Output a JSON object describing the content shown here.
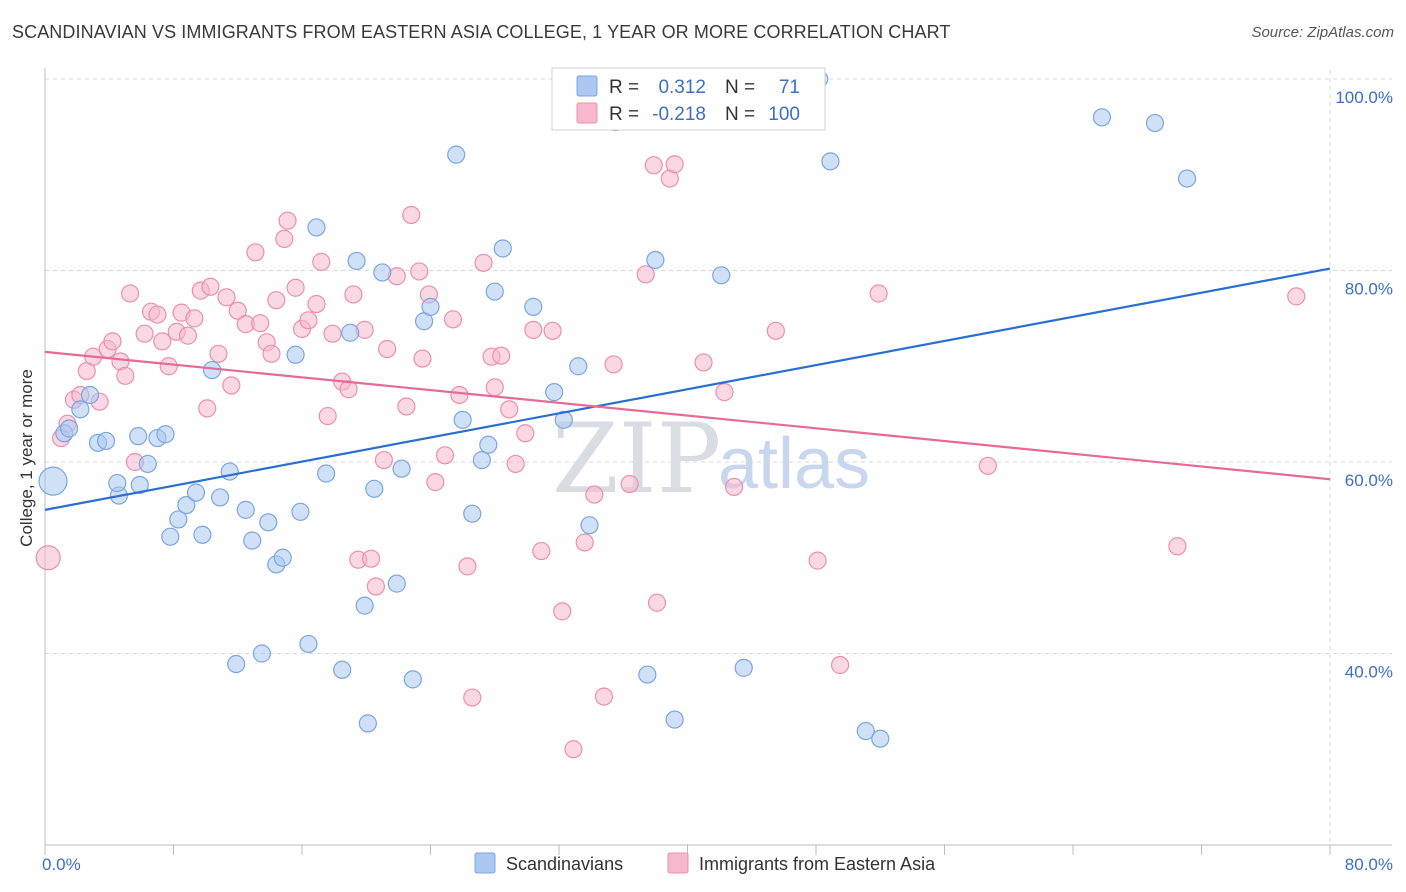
{
  "title": "SCANDINAVIAN VS IMMIGRANTS FROM EASTERN ASIA COLLEGE, 1 YEAR OR MORE CORRELATION CHART",
  "source": "Source: ZipAtlas.com",
  "watermark": {
    "zip": "ZIP",
    "atlas": "atlas"
  },
  "colors": {
    "blue_fill": "#aac8f0",
    "blue_stroke": "#7aa6e0",
    "blue_line": "#2a6fd0",
    "pink_fill": "#f5b8cc",
    "pink_stroke": "#ec8fae",
    "pink_line": "#e56a98",
    "axis_label": "#3d6fc4",
    "grid": "#d8d8d8"
  },
  "legend": {
    "row1": {
      "r_label": "R =",
      "r_value": "0.312",
      "n_label": "N =",
      "n_value": "71"
    },
    "row2": {
      "r_label": "R =",
      "r_value": "-0.218",
      "n_label": "N =",
      "n_value": "100"
    }
  },
  "bottom_legend": {
    "series1": "Scandinavians",
    "series2": "Immigrants from Eastern Asia"
  },
  "chart_data": {
    "type": "scatter",
    "title": "SCANDINAVIAN VS IMMIGRANTS FROM EASTERN ASIA COLLEGE, 1 YEAR OR MORE CORRELATION CHART",
    "xlabel": "",
    "ylabel": "College, 1 year or more",
    "xlim": [
      0,
      80
    ],
    "ylim": [
      20,
      100
    ],
    "x_tick_labels": [
      "0.0%",
      "80.0%"
    ],
    "y_ticks": [
      40,
      60,
      80,
      100
    ],
    "y_tick_labels": [
      "40.0%",
      "60.0%",
      "80.0%",
      "100.0%"
    ],
    "grid": true,
    "legend_position": "top-center",
    "series": [
      {
        "name": "Scandinavians",
        "r": 0.312,
        "n": 71,
        "trend": {
          "x": [
            0,
            80
          ],
          "y": [
            55.0,
            80.2
          ]
        },
        "points": [
          [
            0.5,
            58,
            3
          ],
          [
            1.2,
            63,
            1
          ],
          [
            1.5,
            63.5,
            1
          ],
          [
            2.2,
            65.5,
            1
          ],
          [
            2.8,
            67,
            1
          ],
          [
            3.3,
            62,
            1
          ],
          [
            3.8,
            62.2,
            1
          ],
          [
            4.6,
            56.5,
            1
          ],
          [
            4.5,
            57.8,
            1
          ],
          [
            5.8,
            62.7,
            1
          ],
          [
            5.9,
            57.6,
            1
          ],
          [
            6.4,
            59.8,
            1
          ],
          [
            7.0,
            62.5,
            1
          ],
          [
            7.5,
            62.9,
            1
          ],
          [
            7.8,
            52.2,
            1
          ],
          [
            8.3,
            54,
            1
          ],
          [
            8.8,
            55.5,
            1
          ],
          [
            9.4,
            56.8,
            1
          ],
          [
            9.8,
            52.4,
            1
          ],
          [
            10.4,
            69.6,
            1
          ],
          [
            10.9,
            56.3,
            1
          ],
          [
            11.5,
            59,
            1
          ],
          [
            11.9,
            38.9,
            1
          ],
          [
            12.5,
            55,
            1
          ],
          [
            12.9,
            51.8,
            1
          ],
          [
            13.5,
            40,
            1
          ],
          [
            13.9,
            53.7,
            1
          ],
          [
            14.4,
            49.3,
            1
          ],
          [
            14.8,
            50,
            1
          ],
          [
            15.6,
            71.2,
            1
          ],
          [
            15.9,
            54.8,
            1
          ],
          [
            16.4,
            41,
            1
          ],
          [
            16.9,
            84.5,
            1
          ],
          [
            17.5,
            58.8,
            1
          ],
          [
            18.5,
            38.3,
            1
          ],
          [
            19.0,
            73.5,
            1
          ],
          [
            19.4,
            81,
            1
          ],
          [
            19.9,
            45,
            1
          ],
          [
            20.1,
            32.7,
            1
          ],
          [
            20.5,
            57.2,
            1
          ],
          [
            21.0,
            79.8,
            1
          ],
          [
            21.9,
            47.3,
            1
          ],
          [
            22.2,
            59.3,
            1
          ],
          [
            22.9,
            37.3,
            1
          ],
          [
            23.6,
            74.7,
            1
          ],
          [
            24.0,
            76.2,
            1
          ],
          [
            25.6,
            92.1,
            1
          ],
          [
            26.0,
            64.4,
            1
          ],
          [
            26.6,
            54.6,
            1
          ],
          [
            27.2,
            60.2,
            1
          ],
          [
            27.6,
            61.8,
            1
          ],
          [
            28.0,
            77.8,
            1
          ],
          [
            28.5,
            82.3,
            1
          ],
          [
            30.4,
            76.2,
            1
          ],
          [
            32.3,
            64.4,
            1
          ],
          [
            33.2,
            70,
            1
          ],
          [
            33.9,
            53.4,
            1
          ],
          [
            35.5,
            95.5,
            1
          ],
          [
            37.5,
            37.8,
            1
          ],
          [
            38.0,
            81.1,
            1
          ],
          [
            39.2,
            33.1,
            1
          ],
          [
            42.1,
            79.5,
            1
          ],
          [
            43.5,
            38.5,
            1
          ],
          [
            48.2,
            100,
            1
          ],
          [
            48.9,
            91.4,
            1
          ],
          [
            51.1,
            31.9,
            1
          ],
          [
            52.0,
            31.1,
            1
          ],
          [
            65.8,
            96,
            1
          ],
          [
            69.1,
            95.4,
            1
          ],
          [
            71.1,
            89.6,
            1
          ],
          [
            31.7,
            67.3,
            1
          ]
        ]
      },
      {
        "name": "Immigrants from Eastern Asia",
        "r": -0.218,
        "n": 100,
        "trend": {
          "x": [
            0,
            80
          ],
          "y": [
            71.5,
            58.2
          ]
        },
        "points": [
          [
            0.2,
            50,
            2
          ],
          [
            1.0,
            62.5,
            1
          ],
          [
            1.4,
            64,
            1
          ],
          [
            1.8,
            66.5,
            1
          ],
          [
            2.2,
            67,
            1
          ],
          [
            2.6,
            69.5,
            1
          ],
          [
            3.0,
            71,
            1
          ],
          [
            3.4,
            66.3,
            1
          ],
          [
            3.9,
            71.8,
            1
          ],
          [
            4.2,
            72.6,
            1
          ],
          [
            4.7,
            70.5,
            1
          ],
          [
            5.0,
            69,
            1
          ],
          [
            5.3,
            77.6,
            1
          ],
          [
            5.6,
            60,
            1
          ],
          [
            6.2,
            73.4,
            1
          ],
          [
            6.6,
            75.7,
            1
          ],
          [
            7.0,
            75.4,
            1
          ],
          [
            7.3,
            72.6,
            1
          ],
          [
            7.7,
            70,
            1
          ],
          [
            8.2,
            73.6,
            1
          ],
          [
            8.5,
            75.6,
            1
          ],
          [
            8.9,
            73.2,
            1
          ],
          [
            9.3,
            75,
            1
          ],
          [
            9.7,
            77.9,
            1
          ],
          [
            10.1,
            65.6,
            1
          ],
          [
            10.3,
            78.3,
            1
          ],
          [
            10.8,
            71.3,
            1
          ],
          [
            11.3,
            77.2,
            1
          ],
          [
            11.6,
            68,
            1
          ],
          [
            12.0,
            75.8,
            1
          ],
          [
            12.5,
            74.4,
            1
          ],
          [
            13.1,
            81.9,
            1
          ],
          [
            13.4,
            74.5,
            1
          ],
          [
            13.8,
            72.5,
            1
          ],
          [
            14.1,
            71.3,
            1
          ],
          [
            14.4,
            76.9,
            1
          ],
          [
            14.9,
            83.3,
            1
          ],
          [
            15.1,
            85.2,
            1
          ],
          [
            15.6,
            78.2,
            1
          ],
          [
            16.0,
            73.9,
            1
          ],
          [
            16.4,
            74.8,
            1
          ],
          [
            16.9,
            76.5,
            1
          ],
          [
            17.2,
            80.9,
            1
          ],
          [
            17.6,
            64.8,
            1
          ],
          [
            17.9,
            73.4,
            1
          ],
          [
            18.5,
            68.4,
            1
          ],
          [
            18.9,
            67.6,
            1
          ],
          [
            19.2,
            77.5,
            1
          ],
          [
            19.5,
            49.8,
            1
          ],
          [
            19.9,
            73.8,
            1
          ],
          [
            20.3,
            49.9,
            1
          ],
          [
            20.6,
            47,
            1
          ],
          [
            21.1,
            60.2,
            1
          ],
          [
            21.3,
            71.8,
            1
          ],
          [
            21.9,
            79.4,
            1
          ],
          [
            22.5,
            65.8,
            1
          ],
          [
            22.8,
            85.8,
            1
          ],
          [
            23.3,
            79.9,
            1
          ],
          [
            23.5,
            70.8,
            1
          ],
          [
            23.9,
            77.5,
            1
          ],
          [
            24.3,
            57.9,
            1
          ],
          [
            24.9,
            60.7,
            1
          ],
          [
            25.4,
            74.9,
            1
          ],
          [
            25.8,
            67,
            1
          ],
          [
            26.3,
            49.1,
            1
          ],
          [
            26.6,
            35.4,
            1
          ],
          [
            27.3,
            80.8,
            1
          ],
          [
            27.8,
            71,
            1
          ],
          [
            28.0,
            67.8,
            1
          ],
          [
            28.4,
            71.1,
            1
          ],
          [
            28.9,
            65.5,
            1
          ],
          [
            29.3,
            59.8,
            1
          ],
          [
            29.9,
            63,
            1
          ],
          [
            30.4,
            73.8,
            1
          ],
          [
            30.9,
            50.7,
            1
          ],
          [
            31.6,
            73.7,
            1
          ],
          [
            32.2,
            44.4,
            1
          ],
          [
            32.9,
            30,
            1
          ],
          [
            33.6,
            51.6,
            1
          ],
          [
            34.2,
            56.6,
            1
          ],
          [
            34.8,
            35.5,
            1
          ],
          [
            35.4,
            70.2,
            1
          ],
          [
            36.4,
            57.7,
            1
          ],
          [
            37.4,
            79.6,
            1
          ],
          [
            37.9,
            91,
            1
          ],
          [
            38.1,
            45.3,
            1
          ],
          [
            38.9,
            89.6,
            1
          ],
          [
            39.2,
            91.1,
            1
          ],
          [
            41.0,
            70.4,
            1
          ],
          [
            42.3,
            67.3,
            1
          ],
          [
            42.9,
            57.4,
            1
          ],
          [
            45.5,
            73.7,
            1
          ],
          [
            48.1,
            49.7,
            1
          ],
          [
            49.5,
            38.8,
            1
          ],
          [
            51.9,
            77.6,
            1
          ],
          [
            58.7,
            59.6,
            1
          ],
          [
            70.5,
            51.2,
            1
          ],
          [
            77.9,
            77.3,
            1
          ]
        ]
      }
    ]
  }
}
